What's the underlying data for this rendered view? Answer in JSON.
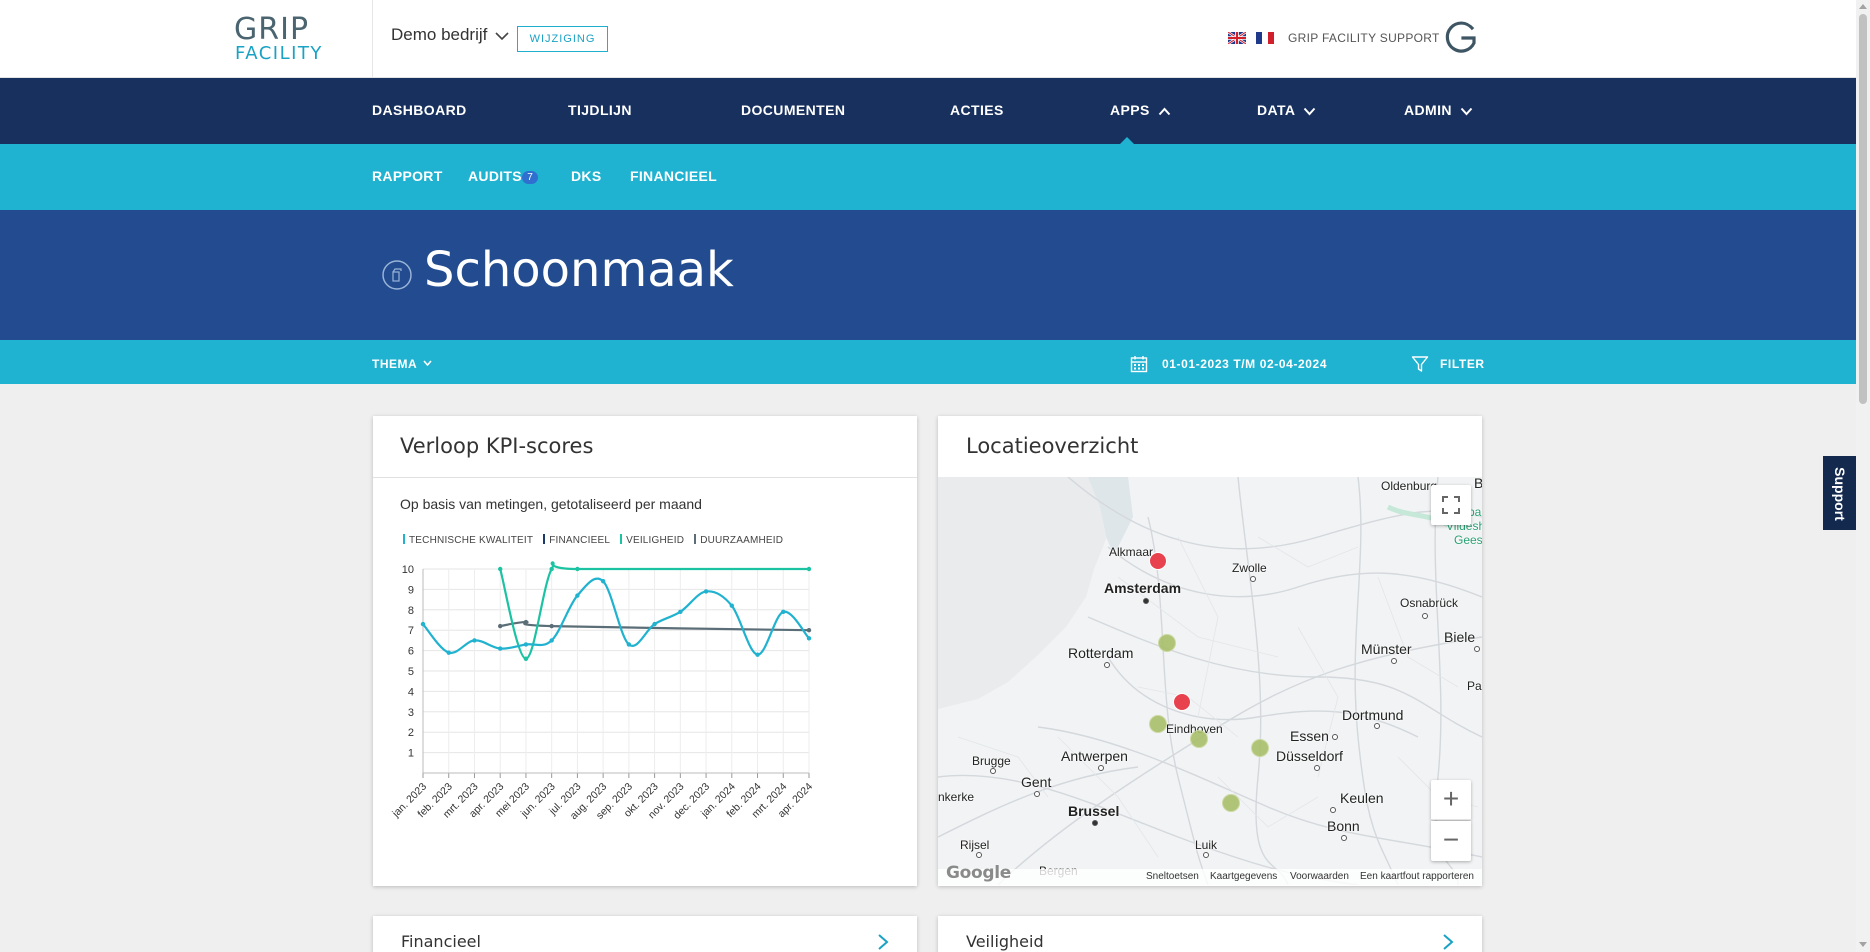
{
  "header": {
    "logo_line1": "GRIP",
    "logo_line2": "FACILITY",
    "company": "Demo bedrijf",
    "change_button": "WIJZIGING",
    "support_link": "GRIP FACILITY SUPPORT",
    "icons": [
      "chevron-down-icon",
      "uk-flag-icon",
      "france-flag-icon",
      "grip-g-logo"
    ]
  },
  "main_nav": {
    "items": [
      {
        "label": "DASHBOARD"
      },
      {
        "label": "TIJDLIJN"
      },
      {
        "label": "DOCUMENTEN"
      },
      {
        "label": "ACTIES"
      },
      {
        "label": "APPS"
      },
      {
        "label": "DATA"
      },
      {
        "label": "ADMIN"
      }
    ],
    "active": "APPS"
  },
  "sub_nav": {
    "items": [
      {
        "label": "RAPPORT"
      },
      {
        "label": "AUDITS"
      },
      {
        "label": "DKS"
      },
      {
        "label": "FINANCIEEL"
      }
    ],
    "audits_badge": "7"
  },
  "page": {
    "title": "Schoonmaak",
    "title_icon": "spray-bottle-icon"
  },
  "filter_bar": {
    "thema": "THEMA",
    "daterange": "01-01-2023 T/M 02-04-2024",
    "filter": "FILTER"
  },
  "kpi_card": {
    "title": "Verloop KPI-scores",
    "subtitle": "Op basis van metingen, getotaliseerd per maand"
  },
  "chart_data": {
    "type": "line",
    "categories": [
      "jan. 2023",
      "feb. 2023",
      "mrt. 2023",
      "apr. 2023",
      "mei 2023",
      "jun. 2023",
      "jul. 2023",
      "aug. 2023",
      "sep. 2023",
      "okt. 2023",
      "nov. 2023",
      "dec. 2023",
      "jan. 2024",
      "feb. 2024",
      "mrt. 2024",
      "apr. 2024"
    ],
    "y_ticks": [
      "1",
      "2",
      "3",
      "4",
      "5",
      "6",
      "7",
      "8",
      "9",
      "10"
    ],
    "ylim": [
      0,
      10
    ],
    "grid": true,
    "legend_position": "top-left",
    "series": [
      {
        "name": "TECHNISCHE KWALITEIT",
        "color": "#20b2cf",
        "values": [
          7.3,
          5.9,
          6.5,
          6.1,
          6.3,
          6.5,
          8.7,
          9.4,
          6.3,
          7.3,
          7.9,
          8.9,
          8.2,
          5.8,
          7.9,
          6.6
        ]
      },
      {
        "name": "FINANCIEEL",
        "color": "#1b3a6b",
        "values": [
          null,
          null,
          null,
          null,
          null,
          null,
          null,
          null,
          null,
          null,
          null,
          null,
          null,
          null,
          null,
          null
        ]
      },
      {
        "name": "VEILIGHEID",
        "color": "#1cc3a2",
        "values": [
          null,
          null,
          null,
          10,
          5.6,
          10,
          10,
          null,
          null,
          null,
          null,
          null,
          null,
          null,
          null,
          10
        ]
      },
      {
        "name": "DUURZAAMHEID",
        "color": "#5b6e78",
        "values": [
          null,
          null,
          null,
          7.2,
          7.4,
          7.2,
          null,
          null,
          null,
          null,
          null,
          null,
          null,
          null,
          null,
          7.0
        ]
      }
    ]
  },
  "map_card": {
    "title": "Locatieoverzicht",
    "cities": [
      {
        "name": "Oldenburg"
      },
      {
        "name": "Alkmaar"
      },
      {
        "name": "Zwolle"
      },
      {
        "name": "Amsterdam"
      },
      {
        "name": "Osnabrück"
      },
      {
        "name": "Rotterdam"
      },
      {
        "name": "Münster"
      },
      {
        "name": "Biele"
      },
      {
        "name": "Pa"
      },
      {
        "name": "Dortmund"
      },
      {
        "name": "Eindhoven"
      },
      {
        "name": "Essen"
      },
      {
        "name": "Brugge"
      },
      {
        "name": "Antwerpen"
      },
      {
        "name": "Düsseldorf"
      },
      {
        "name": "Gent"
      },
      {
        "name": "nkerke"
      },
      {
        "name": "Keulen"
      },
      {
        "name": "Brussel"
      },
      {
        "name": "Bonn"
      },
      {
        "name": "Rijsel"
      },
      {
        "name": "Luik"
      },
      {
        "name": "Bergen"
      }
    ],
    "map_corner_text": [
      "B",
      "pa",
      "Vildesha",
      "Gees"
    ],
    "footer": [
      "Sneltoetsen",
      "Kaartgegevens",
      "Voorwaarden",
      "Een kaartfout rapporteren"
    ],
    "google": "Google",
    "zoom_in": "+",
    "zoom_out": "−"
  },
  "bottom_cards": [
    {
      "title": "Financieel"
    },
    {
      "title": "Veiligheid"
    }
  ],
  "support_tab": "Support"
}
